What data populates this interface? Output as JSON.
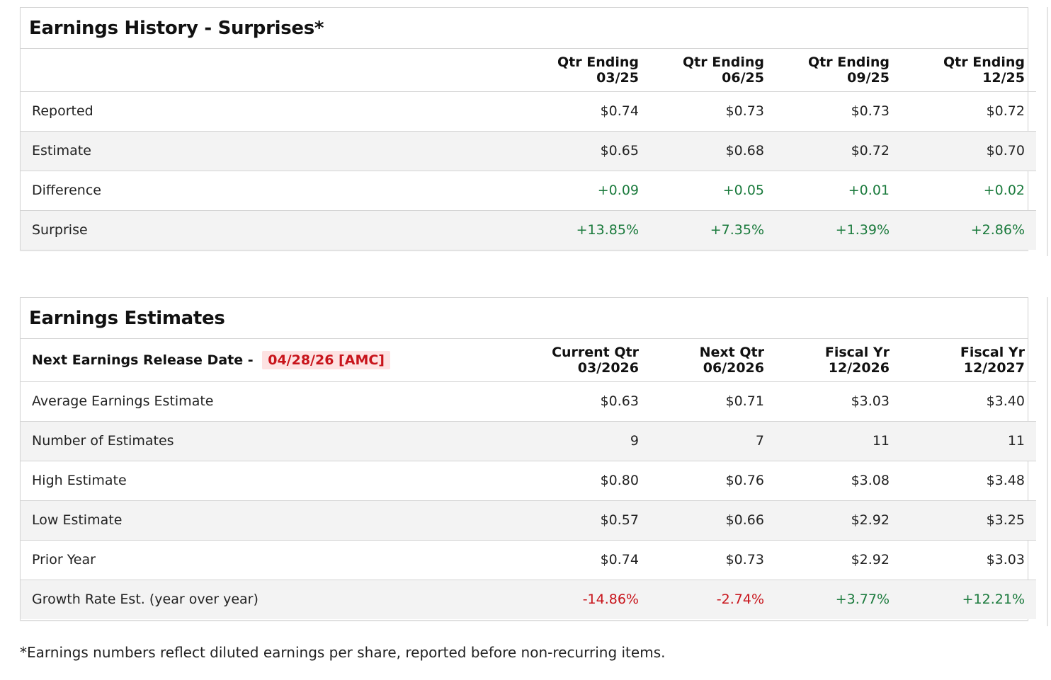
{
  "history": {
    "title": "Earnings History - Surprises*",
    "columns": [
      {
        "line1": "Qtr Ending",
        "line2": "03/25"
      },
      {
        "line1": "Qtr Ending",
        "line2": "06/25"
      },
      {
        "line1": "Qtr Ending",
        "line2": "09/25"
      },
      {
        "line1": "Qtr Ending",
        "line2": "12/25"
      }
    ],
    "rows": [
      {
        "label": "Reported",
        "values": [
          "$0.74",
          "$0.73",
          "$0.73",
          "$0.72"
        ]
      },
      {
        "label": "Estimate",
        "values": [
          "$0.65",
          "$0.68",
          "$0.72",
          "$0.70"
        ]
      },
      {
        "label": "Difference",
        "values": [
          "+0.09",
          "+0.05",
          "+0.01",
          "+0.02"
        ]
      },
      {
        "label": "Surprise",
        "values": [
          "+13.85%",
          "+7.35%",
          "+1.39%",
          "+2.86%"
        ]
      }
    ]
  },
  "estimates": {
    "title": "Earnings Estimates",
    "release_label": "Next Earnings Release Date -",
    "release_date": "04/28/26 [AMC]",
    "columns": [
      {
        "line1": "Current Qtr",
        "line2": "03/2026"
      },
      {
        "line1": "Next Qtr",
        "line2": "06/2026"
      },
      {
        "line1": "Fiscal Yr",
        "line2": "12/2026"
      },
      {
        "line1": "Fiscal Yr",
        "line2": "12/2027"
      }
    ],
    "rows": [
      {
        "label": "Average Earnings Estimate",
        "values": [
          "$0.63",
          "$0.71",
          "$3.03",
          "$3.40"
        ]
      },
      {
        "label": "Number of Estimates",
        "values": [
          "9",
          "7",
          "11",
          "11"
        ]
      },
      {
        "label": "High Estimate",
        "values": [
          "$0.80",
          "$0.76",
          "$3.08",
          "$3.48"
        ]
      },
      {
        "label": "Low Estimate",
        "values": [
          "$0.57",
          "$0.66",
          "$2.92",
          "$3.25"
        ]
      },
      {
        "label": "Prior Year",
        "values": [
          "$0.74",
          "$0.73",
          "$2.92",
          "$3.03"
        ]
      },
      {
        "label": "Growth Rate Est. (year over year)",
        "values": [
          "-14.86%",
          "-2.74%",
          "+3.77%",
          "+12.21%"
        ]
      }
    ]
  },
  "footnote": "*Earnings numbers reflect diluted earnings per share, reported before non-recurring items.",
  "colors": {
    "positive": "#1a7a3c",
    "negative": "#c8141b",
    "release_date_bg": "#fde2e2",
    "alt_row_bg": "#f3f3f3",
    "border": "#d4d4d4"
  }
}
